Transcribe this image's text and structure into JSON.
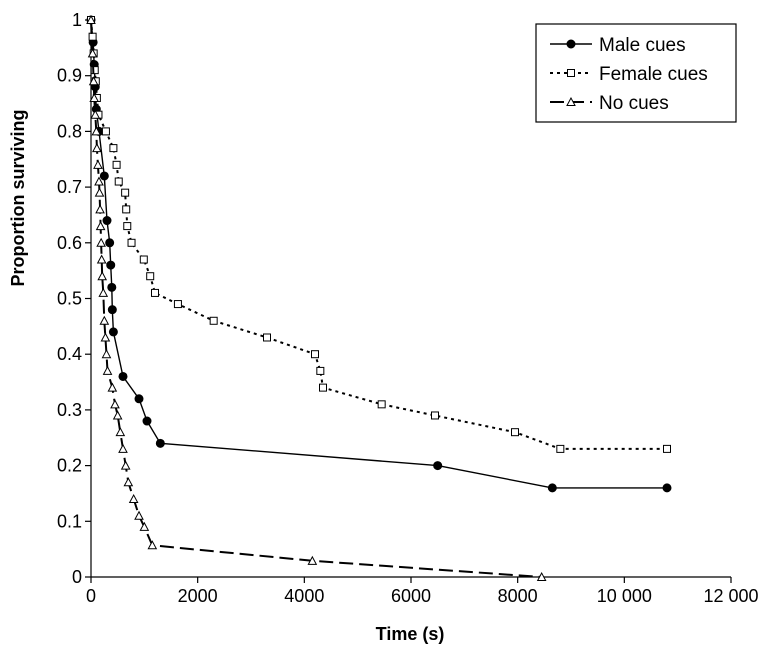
{
  "chart_data": {
    "type": "line",
    "xlabel": "Time (s)",
    "ylabel": "Proportion surviving",
    "xlim": [
      0,
      12000
    ],
    "ylim": [
      0,
      1
    ],
    "x_ticks": [
      {
        "value": 0,
        "label": "0"
      },
      {
        "value": 2000,
        "label": "2000"
      },
      {
        "value": 4000,
        "label": "4000"
      },
      {
        "value": 6000,
        "label": "6000"
      },
      {
        "value": 8000,
        "label": "8000"
      },
      {
        "value": 10000,
        "label": "10 000"
      },
      {
        "value": 12000,
        "label": "12 000"
      }
    ],
    "y_ticks": [
      {
        "value": 0,
        "label": "0"
      },
      {
        "value": 0.1,
        "label": "0.1"
      },
      {
        "value": 0.2,
        "label": "0.2"
      },
      {
        "value": 0.3,
        "label": "0.3"
      },
      {
        "value": 0.4,
        "label": "0.4"
      },
      {
        "value": 0.5,
        "label": "0.5"
      },
      {
        "value": 0.6,
        "label": "0.6"
      },
      {
        "value": 0.7,
        "label": "0.7"
      },
      {
        "value": 0.8,
        "label": "0.8"
      },
      {
        "value": 0.9,
        "label": "0.9"
      },
      {
        "value": 1,
        "label": "1"
      }
    ],
    "grid": false,
    "legend_position": "top-right",
    "series": [
      {
        "name": "Male cues",
        "line_style": "solid",
        "marker": "filled-circle",
        "points": [
          [
            0,
            1
          ],
          [
            40,
            0.96
          ],
          [
            60,
            0.92
          ],
          [
            80,
            0.88
          ],
          [
            100,
            0.84
          ],
          [
            150,
            0.8
          ],
          [
            250,
            0.72
          ],
          [
            300,
            0.64
          ],
          [
            350,
            0.6
          ],
          [
            370,
            0.56
          ],
          [
            390,
            0.52
          ],
          [
            400,
            0.48
          ],
          [
            420,
            0.44
          ],
          [
            600,
            0.36
          ],
          [
            900,
            0.32
          ],
          [
            1050,
            0.28
          ],
          [
            1300,
            0.24
          ],
          [
            6500,
            0.2
          ],
          [
            8650,
            0.16
          ],
          [
            10800,
            0.16
          ]
        ]
      },
      {
        "name": "Female cues",
        "line_style": "dotted",
        "marker": "open-square",
        "points": [
          [
            0,
            1
          ],
          [
            30,
            0.97
          ],
          [
            50,
            0.94
          ],
          [
            70,
            0.91
          ],
          [
            90,
            0.89
          ],
          [
            110,
            0.86
          ],
          [
            140,
            0.83
          ],
          [
            280,
            0.8
          ],
          [
            420,
            0.77
          ],
          [
            480,
            0.74
          ],
          [
            520,
            0.71
          ],
          [
            640,
            0.69
          ],
          [
            660,
            0.66
          ],
          [
            680,
            0.63
          ],
          [
            760,
            0.6
          ],
          [
            990,
            0.57
          ],
          [
            1110,
            0.54
          ],
          [
            1200,
            0.51
          ],
          [
            1630,
            0.49
          ],
          [
            2300,
            0.46
          ],
          [
            3300,
            0.43
          ],
          [
            4200,
            0.4
          ],
          [
            4300,
            0.37
          ],
          [
            4350,
            0.34
          ],
          [
            5450,
            0.31
          ],
          [
            6450,
            0.29
          ],
          [
            7950,
            0.26
          ],
          [
            8800,
            0.23
          ],
          [
            10800,
            0.23
          ]
        ]
      },
      {
        "name": "No cues",
        "line_style": "dashed",
        "marker": "open-triangle",
        "points": [
          [
            0,
            1
          ],
          [
            30,
            0.94
          ],
          [
            50,
            0.89
          ],
          [
            60,
            0.86
          ],
          [
            80,
            0.83
          ],
          [
            100,
            0.8
          ],
          [
            110,
            0.77
          ],
          [
            130,
            0.74
          ],
          [
            150,
            0.71
          ],
          [
            160,
            0.69
          ],
          [
            170,
            0.66
          ],
          [
            180,
            0.63
          ],
          [
            190,
            0.6
          ],
          [
            200,
            0.57
          ],
          [
            210,
            0.54
          ],
          [
            230,
            0.51
          ],
          [
            250,
            0.46
          ],
          [
            270,
            0.43
          ],
          [
            290,
            0.4
          ],
          [
            310,
            0.37
          ],
          [
            400,
            0.34
          ],
          [
            450,
            0.31
          ],
          [
            500,
            0.29
          ],
          [
            550,
            0.26
          ],
          [
            600,
            0.23
          ],
          [
            650,
            0.2
          ],
          [
            700,
            0.17
          ],
          [
            800,
            0.14
          ],
          [
            900,
            0.11
          ],
          [
            1000,
            0.09
          ],
          [
            1150,
            0.057
          ],
          [
            4150,
            0.029
          ],
          [
            8450,
            0
          ]
        ]
      }
    ]
  }
}
